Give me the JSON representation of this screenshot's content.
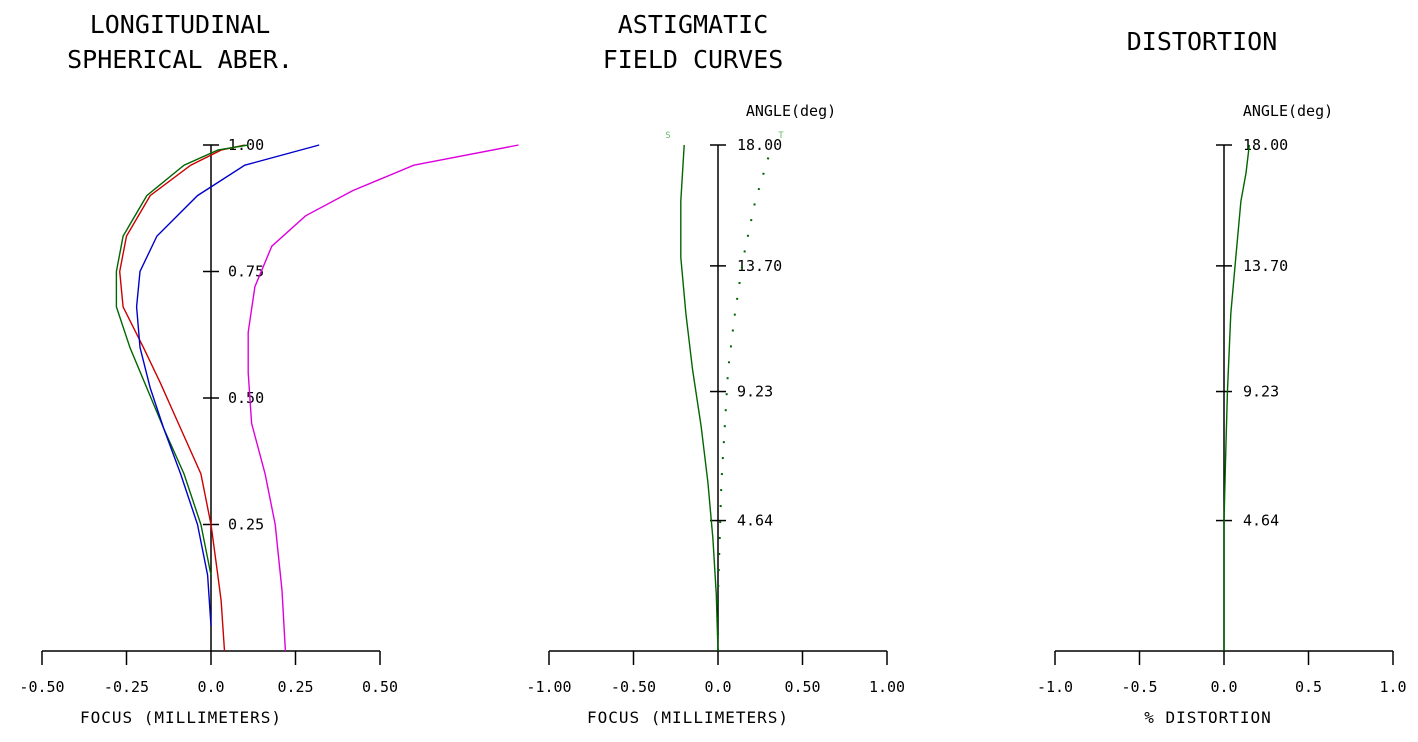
{
  "chart_data": [
    {
      "type": "line",
      "title": [
        "LONGITUDINAL",
        "SPHERICAL ABER."
      ],
      "xlabel": "FOCUS (MILLIMETERS)",
      "xlim": [
        -0.5,
        0.5
      ],
      "ylim": [
        0,
        1
      ],
      "x_ticks": [
        -0.5,
        -0.25,
        0,
        0.25,
        0.5
      ],
      "x_tick_labels": [
        "-0.50",
        "-0.25",
        "0.0",
        "0.25",
        "0.50"
      ],
      "y_ticks": [
        0.25,
        0.5,
        0.75,
        1.0
      ],
      "y_tick_labels": [
        "0.25",
        "0.50",
        "0.75",
        "1.00"
      ],
      "series": [
        {
          "color": "#cc0000",
          "points": [
            [
              0.04,
              0
            ],
            [
              0.03,
              0.1
            ],
            [
              0.02,
              0.15
            ],
            [
              0.0,
              0.25
            ],
            [
              -0.03,
              0.35
            ],
            [
              -0.09,
              0.44
            ],
            [
              -0.15,
              0.53
            ],
            [
              -0.2,
              0.6
            ],
            [
              -0.26,
              0.68
            ],
            [
              -0.27,
              0.75
            ],
            [
              -0.25,
              0.82
            ],
            [
              -0.18,
              0.9
            ],
            [
              -0.06,
              0.96
            ],
            [
              0.03,
              0.99
            ],
            [
              0.1,
              1.0
            ]
          ]
        },
        {
          "color": "#006600",
          "points": [
            [
              0.0,
              0.15
            ],
            [
              -0.03,
              0.25
            ],
            [
              -0.08,
              0.35
            ],
            [
              -0.14,
              0.44
            ],
            [
              -0.19,
              0.52
            ],
            [
              -0.24,
              0.6
            ],
            [
              -0.28,
              0.68
            ],
            [
              -0.28,
              0.75
            ],
            [
              -0.26,
              0.82
            ],
            [
              -0.19,
              0.9
            ],
            [
              -0.08,
              0.96
            ],
            [
              0.02,
              0.99
            ],
            [
              0.11,
              1.0
            ]
          ]
        },
        {
          "color": "#0000cc",
          "points": [
            [
              0.0,
              0.05
            ],
            [
              -0.01,
              0.15
            ],
            [
              -0.04,
              0.25
            ],
            [
              -0.09,
              0.35
            ],
            [
              -0.14,
              0.44
            ],
            [
              -0.18,
              0.52
            ],
            [
              -0.21,
              0.6
            ],
            [
              -0.22,
              0.68
            ],
            [
              -0.21,
              0.75
            ],
            [
              -0.16,
              0.82
            ],
            [
              -0.04,
              0.9
            ],
            [
              0.1,
              0.96
            ],
            [
              0.32,
              1.0
            ]
          ]
        },
        {
          "color": "#dd00dd",
          "points": [
            [
              0.22,
              0
            ],
            [
              0.21,
              0.12
            ],
            [
              0.19,
              0.25
            ],
            [
              0.16,
              0.35
            ],
            [
              0.12,
              0.45
            ],
            [
              0.11,
              0.55
            ],
            [
              0.11,
              0.63
            ],
            [
              0.13,
              0.72
            ],
            [
              0.18,
              0.8
            ],
            [
              0.28,
              0.86
            ],
            [
              0.42,
              0.91
            ],
            [
              0.6,
              0.96
            ],
            [
              0.91,
              1.0
            ]
          ]
        }
      ]
    },
    {
      "type": "line",
      "title": [
        "ASTIGMATIC",
        "FIELD CURVES"
      ],
      "xlabel": "FOCUS (MILLIMETERS)",
      "ylabel": "ANGLE(deg)",
      "xlim": [
        -1.0,
        1.0
      ],
      "ylim": [
        0,
        18
      ],
      "x_ticks": [
        -1.0,
        -0.5,
        0,
        0.5,
        1.0
      ],
      "x_tick_labels": [
        "-1.00",
        "-0.50",
        "0.0",
        "0.50",
        "1.00"
      ],
      "y_ticks": [
        4.64,
        9.23,
        13.7,
        18.0
      ],
      "y_tick_labels": [
        "4.64",
        "9.23",
        "13.70",
        "18.00"
      ],
      "markers": {
        "s": "S",
        "t": "T"
      },
      "series": [
        {
          "name": "S",
          "color": "#006600",
          "dash": false,
          "points": [
            [
              0,
              0
            ],
            [
              -0.01,
              2
            ],
            [
              -0.03,
              4
            ],
            [
              -0.06,
              6
            ],
            [
              -0.1,
              8
            ],
            [
              -0.15,
              10
            ],
            [
              -0.19,
              12
            ],
            [
              -0.22,
              14
            ],
            [
              -0.22,
              16
            ],
            [
              -0.2,
              18
            ]
          ]
        },
        {
          "name": "T",
          "color": "#006600",
          "dash": true,
          "points": [
            [
              0,
              0
            ],
            [
              0.0,
              2
            ],
            [
              0.01,
              4
            ],
            [
              0.02,
              6
            ],
            [
              0.04,
              8
            ],
            [
              0.06,
              10
            ],
            [
              0.1,
              12
            ],
            [
              0.15,
              14
            ],
            [
              0.22,
              16
            ],
            [
              0.32,
              18
            ]
          ]
        }
      ]
    },
    {
      "type": "line",
      "title": [
        "DISTORTION"
      ],
      "xlabel": "% DISTORTION",
      "ylabel": "ANGLE(deg)",
      "xlim": [
        -1.0,
        1.0
      ],
      "ylim": [
        0,
        18
      ],
      "x_ticks": [
        -1.0,
        -0.5,
        0,
        0.5,
        1.0
      ],
      "x_tick_labels": [
        "-1.0",
        "-0.5",
        "0.0",
        "0.5",
        "1.0"
      ],
      "y_ticks": [
        4.64,
        9.23,
        13.7,
        18.0
      ],
      "y_tick_labels": [
        "4.64",
        "9.23",
        "13.70",
        "18.00"
      ],
      "series": [
        {
          "color": "#006600",
          "points": [
            [
              0,
              0
            ],
            [
              0.0,
              4.6
            ],
            [
              0.01,
              7
            ],
            [
              0.02,
              9.2
            ],
            [
              0.04,
              12
            ],
            [
              0.07,
              14
            ],
            [
              0.1,
              16
            ],
            [
              0.13,
              17
            ],
            [
              0.15,
              18
            ]
          ]
        }
      ]
    }
  ]
}
